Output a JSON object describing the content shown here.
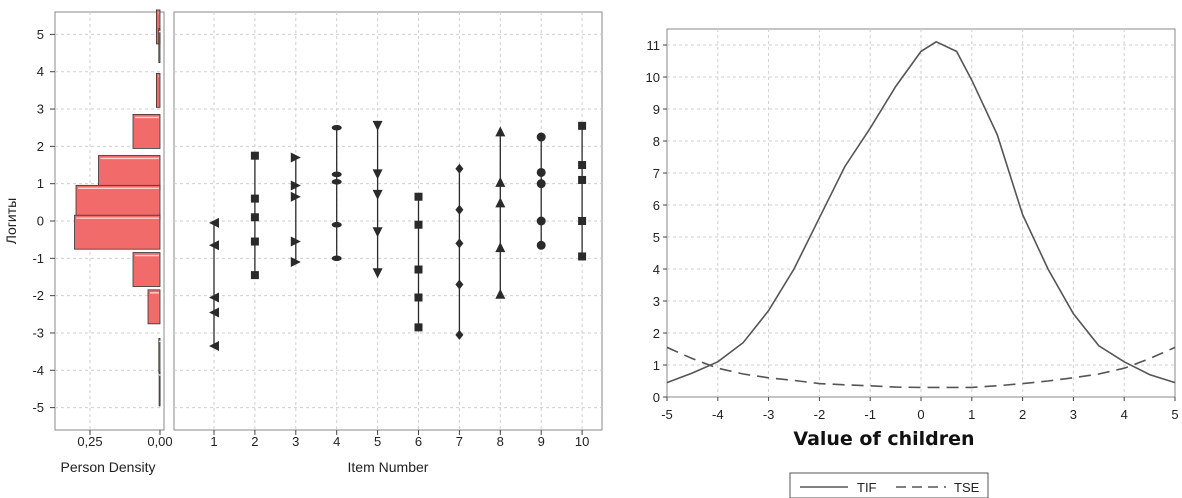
{
  "chart_data": [
    {
      "type": "bar",
      "orientation": "horizontal",
      "title": "",
      "xlabel": "Person Density",
      "ylabel": "Логиты",
      "x_ticks": [
        "0,25",
        "0,00"
      ],
      "xlim": [
        0.35,
        0.0
      ],
      "ylim": [
        -5.6,
        5.6
      ],
      "y_ticks": [
        "5",
        "4",
        "3",
        "2",
        "1",
        "0",
        "-1",
        "-2",
        "-3",
        "-4",
        "-5"
      ],
      "bar_color": "#f26b6b",
      "bins": [
        {
          "y": 5.2,
          "value": 0.012
        },
        {
          "y": 4.7,
          "value": 0.004
        },
        {
          "y": 3.5,
          "value": 0.012
        },
        {
          "y": 2.4,
          "value": 0.09
        },
        {
          "y": 1.3,
          "value": 0.205
        },
        {
          "y": 0.5,
          "value": 0.28
        },
        {
          "y": -0.3,
          "value": 0.285
        },
        {
          "y": -1.3,
          "value": 0.09
        },
        {
          "y": -2.3,
          "value": 0.04
        },
        {
          "y": -3.6,
          "value": 0.004
        },
        {
          "y": -4.5,
          "value": 0.003
        }
      ],
      "grid": true
    },
    {
      "type": "scatter",
      "title": "",
      "xlabel": "Item Number",
      "ylabel": "",
      "categories": [
        "1",
        "2",
        "3",
        "4",
        "5",
        "6",
        "7",
        "8",
        "9",
        "10"
      ],
      "ylim": [
        -5.6,
        5.6
      ],
      "grid": true,
      "items": [
        {
          "marker": "triangle-left",
          "min": -3.4,
          "max": -0.05,
          "thresholds": [
            -3.35,
            -2.45,
            -2.05,
            -0.65,
            -0.05
          ]
        },
        {
          "marker": "square",
          "min": -1.45,
          "max": 1.75,
          "thresholds": [
            -1.45,
            -0.55,
            0.1,
            0.6,
            1.75
          ]
        },
        {
          "marker": "triangle-right",
          "min": -1.1,
          "max": 1.7,
          "thresholds": [
            -1.1,
            -0.55,
            0.65,
            0.95,
            1.7
          ]
        },
        {
          "marker": "pill",
          "min": -1.0,
          "max": 2.5,
          "thresholds": [
            -1.0,
            -0.1,
            1.05,
            1.25,
            2.5
          ]
        },
        {
          "marker": "triangle-down",
          "min": -1.4,
          "max": 2.55,
          "thresholds": [
            -1.4,
            -0.3,
            0.7,
            1.25,
            2.55
          ]
        },
        {
          "marker": "square",
          "min": -2.85,
          "max": 0.65,
          "thresholds": [
            -2.85,
            -2.05,
            -1.3,
            -0.1,
            0.65
          ]
        },
        {
          "marker": "diamond",
          "min": -3.05,
          "max": 1.4,
          "thresholds": [
            -3.05,
            -1.7,
            -0.6,
            0.3,
            1.4
          ]
        },
        {
          "marker": "triangle-up",
          "min": -1.95,
          "max": 2.4,
          "thresholds": [
            -1.95,
            -0.7,
            0.5,
            1.05,
            2.4
          ]
        },
        {
          "marker": "circle",
          "min": -0.65,
          "max": 2.25,
          "thresholds": [
            -0.65,
            0.0,
            1.0,
            1.3,
            2.25
          ]
        },
        {
          "marker": "square",
          "min": -0.95,
          "max": 2.55,
          "thresholds": [
            -0.95,
            0.0,
            1.1,
            1.5,
            2.55
          ]
        }
      ]
    },
    {
      "type": "line",
      "title": "",
      "xlabel": "Value of children",
      "ylabel": "",
      "xlim": [
        -5,
        5
      ],
      "ylim": [
        0,
        11.5
      ],
      "x_ticks": [
        "-5",
        "-4",
        "-3",
        "-2",
        "-1",
        "0",
        "1",
        "2",
        "3",
        "4",
        "5"
      ],
      "y_ticks": [
        "0",
        "1",
        "2",
        "3",
        "4",
        "5",
        "6",
        "7",
        "8",
        "9",
        "10",
        "11"
      ],
      "grid": true,
      "legend_position": "bottom",
      "series": [
        {
          "name": "TIF",
          "style": "solid",
          "x": [
            -5,
            -4.5,
            -4,
            -3.5,
            -3,
            -2.5,
            -2,
            -1.5,
            -1,
            -0.5,
            0,
            0.3,
            0.7,
            1,
            1.5,
            2,
            2.5,
            3,
            3.5,
            4,
            4.5,
            5
          ],
          "y": [
            0.45,
            0.75,
            1.1,
            1.7,
            2.7,
            4.0,
            5.6,
            7.2,
            8.4,
            9.7,
            10.8,
            11.1,
            10.8,
            9.9,
            8.2,
            5.7,
            4.0,
            2.6,
            1.6,
            1.1,
            0.7,
            0.45
          ]
        },
        {
          "name": "TSE",
          "style": "dashed",
          "x": [
            -5,
            -4.5,
            -4,
            -3.5,
            -3,
            -2.5,
            -2,
            -1.5,
            -1,
            -0.5,
            0,
            0.5,
            1,
            1.5,
            2,
            2.5,
            3,
            3.5,
            4,
            4.5,
            5
          ],
          "y": [
            1.55,
            1.2,
            0.9,
            0.72,
            0.6,
            0.52,
            0.42,
            0.38,
            0.35,
            0.31,
            0.3,
            0.3,
            0.3,
            0.35,
            0.42,
            0.5,
            0.6,
            0.72,
            0.9,
            1.2,
            1.55
          ]
        }
      ]
    }
  ]
}
